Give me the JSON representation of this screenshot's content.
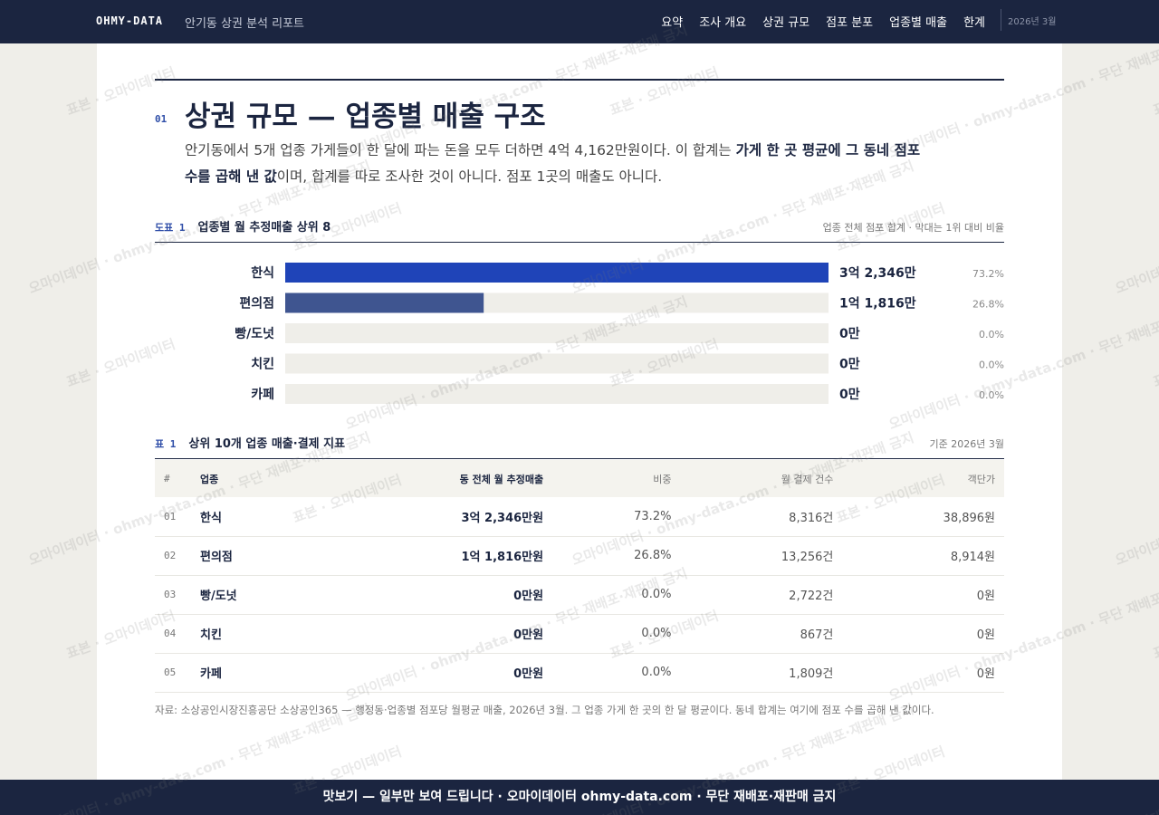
{
  "nav": {
    "brand": "OHMY-DATA",
    "subtitle": "안기동 상권 분석 리포트",
    "links": [
      "요약",
      "조사 개요",
      "상권 규모",
      "점포 분포",
      "업종별 매출",
      "한계"
    ],
    "date": "2026년 3월"
  },
  "section": {
    "number": "01",
    "title": "상권 규모 — 업종별 매출 구조",
    "lead": [
      "안기동에서 5개 업종 가게들이 한 달에 파는 돈을 모두 더하면 4억 4,162만원이다. 이 합계는 ",
      "가게 한 곳 평균에 그 동네 점포 수를 곱해 낸 값",
      "이며, 합계를 따로 조사한 것이 아니다. 점포 1곳의 매출도 아니다."
    ]
  },
  "figure": {
    "label": "도표 1",
    "title": "업종별 월 추정매출 상위 8",
    "note": "업종 전체 점포 합계 · 막대는 1위 대비 비율"
  },
  "chart_data": {
    "type": "bar",
    "orientation": "horizontal",
    "categories": [
      "한식",
      "편의점",
      "빵/도넛",
      "치킨",
      "카페"
    ],
    "values": [
      32346,
      11816,
      0,
      0,
      0
    ],
    "value_labels": [
      "3억 2,346만",
      "1억 1,816만",
      "0만",
      "0만",
      "0만"
    ],
    "colors": [
      "#1f44b8",
      "#3f5590",
      "#3f5590",
      "#8790a8",
      "#8790a8"
    ],
    "shares": [
      73.2,
      26.8,
      0,
      0,
      0
    ],
    "share_labels": [
      "73.2%",
      "26.8%",
      "0.0%",
      "0.0%",
      "0.0%"
    ]
  },
  "table": {
    "label": "표 1",
    "title": "상위 10개 업종 매출·결제 지표",
    "note": "기준 2026년 3월",
    "headers": [
      "#",
      "업종",
      "동 전체 월 추정매출",
      "비중",
      "월 결제 건수",
      "객단가"
    ],
    "rows": [
      [
        "01",
        "한식",
        "3억 2,346만원",
        "73.2%",
        "8,316건",
        "38,896원"
      ],
      [
        "02",
        "편의점",
        "1억 1,816만원",
        "26.8%",
        "13,256건",
        "8,914원"
      ],
      [
        "03",
        "빵/도넛",
        "0만원",
        "0.0%",
        "2,722건",
        "0원"
      ],
      [
        "04",
        "치킨",
        "0만원",
        "0.0%",
        "867건",
        "0원"
      ],
      [
        "05",
        "카페",
        "0만원",
        "0.0%",
        "1,809건",
        "0원"
      ]
    ]
  },
  "source": "자료: 소상공인시장진흥공단 소상공인365 — 행정동·업종별 점포당 월평균 매출, 2026년 3월. 그 업종 가게 한 곳의 한 달 평균이다. 동네 합계는 여기에 점포 수를 곱해 낸 값이다.",
  "footer": "맛보기 — 일부만 보여 드립니다 · 오마이데이터 ohmy-data.com · 무단 재배포·재판매 금지",
  "watermark": [
    "표본 · 오마이데이터",
    "오마이데이터 · ohmy-data.com · 무단 재배포·재판매 금지"
  ]
}
